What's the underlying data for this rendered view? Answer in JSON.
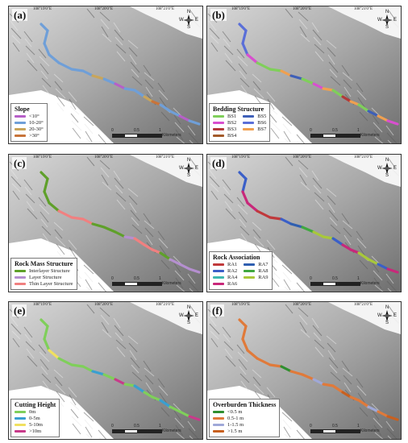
{
  "coords": {
    "top": [
      "108°19'0\"E",
      "108°20'0\"E",
      "108°21'0\"E"
    ],
    "lat_upper": "N\"0'6°02",
    "lat_lower": "N\"0'5°02"
  },
  "north": {
    "n": "N",
    "e": "E",
    "s": "S",
    "w": "W"
  },
  "scale": {
    "zero": "0",
    "half": "0.5",
    "one": "1",
    "unit": "Kilometers"
  },
  "panels": [
    {
      "label": "(a)",
      "legend_title": "Slope",
      "items": [
        {
          "label": "<10°",
          "color": "#b65fc8"
        },
        {
          "label": "10-20°",
          "color": "#6f9fd8"
        },
        {
          "label": "20-30°",
          "color": "#c9a55a"
        },
        {
          "label": ">30°",
          "color": "#c8743a"
        }
      ]
    },
    {
      "label": "(b)",
      "legend_title": "Bedding Structure",
      "items": [
        {
          "label": "BS1",
          "color": "#7fcf5a"
        },
        {
          "label": "BS2",
          "color": "#d84fcf"
        },
        {
          "label": "BS3",
          "color": "#b23a3a"
        },
        {
          "label": "BS4",
          "color": "#a35a2a"
        },
        {
          "label": "BS5",
          "color": "#3e5fb8"
        },
        {
          "label": "BS6",
          "color": "#5a6fd8"
        },
        {
          "label": "BS7",
          "color": "#f0a050"
        }
      ]
    },
    {
      "label": "(c)",
      "legend_title": "Rock Mass Structure",
      "items": [
        {
          "label": "Interlayer Structure",
          "color": "#5fa02a"
        },
        {
          "label": "Layer Structure",
          "color": "#b58fd0"
        },
        {
          "label": "Thin Layer Structure",
          "color": "#f08080"
        }
      ]
    },
    {
      "label": "(d)",
      "legend_title": "Rock Association",
      "items": [
        {
          "label": "RA1",
          "color": "#c0393b"
        },
        {
          "label": "RA2",
          "color": "#3a5fc8"
        },
        {
          "label": "RA4",
          "color": "#3fb8b0"
        },
        {
          "label": "RA6",
          "color": "#c8287a"
        },
        {
          "label": "RA7",
          "color": "#2f5fb0"
        },
        {
          "label": "RA8",
          "color": "#3fa83f"
        },
        {
          "label": "RA9",
          "color": "#a8c83a"
        }
      ]
    },
    {
      "label": "(e)",
      "legend_title": "Cutting Height",
      "items": [
        {
          "label": "0m",
          "color": "#7fcf5a"
        },
        {
          "label": "0-5m",
          "color": "#3a9fd0"
        },
        {
          "label": "5-10m",
          "color": "#f0e060"
        },
        {
          "label": ">10m",
          "color": "#c83a8a"
        }
      ]
    },
    {
      "label": "(f)",
      "legend_title": "Overburden Thickness",
      "items": [
        {
          "label": "<0.5 m",
          "color": "#2f8f2f"
        },
        {
          "label": "0.5-1 m",
          "color": "#e07a3a"
        },
        {
          "label": "1-1.5 m",
          "color": "#9fa8d8"
        },
        {
          "label": ">1.5 m",
          "color": "#c8601f"
        }
      ]
    }
  ]
}
